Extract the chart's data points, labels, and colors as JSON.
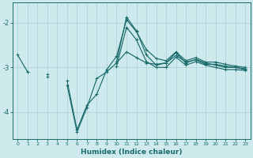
{
  "xlabel": "Humidex (Indice chaleur)",
  "background_color": "#ceeaed",
  "grid_color": "#a8cfd4",
  "line_color": "#1a6b6b",
  "xlim": [
    -0.5,
    23.5
  ],
  "ylim": [
    -4.6,
    -1.55
  ],
  "yticks": [
    -4,
    -3,
    -2
  ],
  "xticks": [
    0,
    1,
    2,
    3,
    4,
    5,
    6,
    7,
    8,
    9,
    10,
    11,
    12,
    13,
    14,
    15,
    16,
    17,
    18,
    19,
    20,
    21,
    22,
    23
  ],
  "series": [
    [
      null,
      -3.1,
      null,
      -3.15,
      null,
      -3.3,
      -4.4,
      -3.85,
      -3.6,
      -3.05,
      -2.75,
      -1.93,
      -2.2,
      -2.6,
      -2.8,
      -2.85,
      -2.65,
      -2.85,
      -2.78,
      -2.88,
      -2.88,
      -2.93,
      -2.97,
      -3.0
    ],
    [
      -2.72,
      -3.1,
      null,
      -3.2,
      null,
      -3.4,
      -4.45,
      -3.9,
      -3.25,
      -3.1,
      -2.9,
      -2.65,
      -2.78,
      -2.9,
      -2.93,
      -2.9,
      -2.73,
      -2.88,
      -2.83,
      -2.93,
      -2.93,
      -2.97,
      -3.0,
      -3.03
    ],
    [
      null,
      null,
      null,
      null,
      null,
      null,
      null,
      null,
      null,
      null,
      -2.87,
      -1.87,
      -2.18,
      -2.72,
      -2.95,
      -2.9,
      -2.67,
      -2.9,
      -2.82,
      -2.9,
      -2.95,
      -3.0,
      -3.0,
      -3.05
    ],
    [
      null,
      null,
      null,
      null,
      null,
      null,
      null,
      null,
      null,
      null,
      -2.97,
      -2.1,
      -2.38,
      -2.87,
      -3.0,
      -3.0,
      -2.77,
      -2.95,
      -2.87,
      -2.95,
      -3.0,
      -3.05,
      -3.05,
      -3.07
    ]
  ]
}
